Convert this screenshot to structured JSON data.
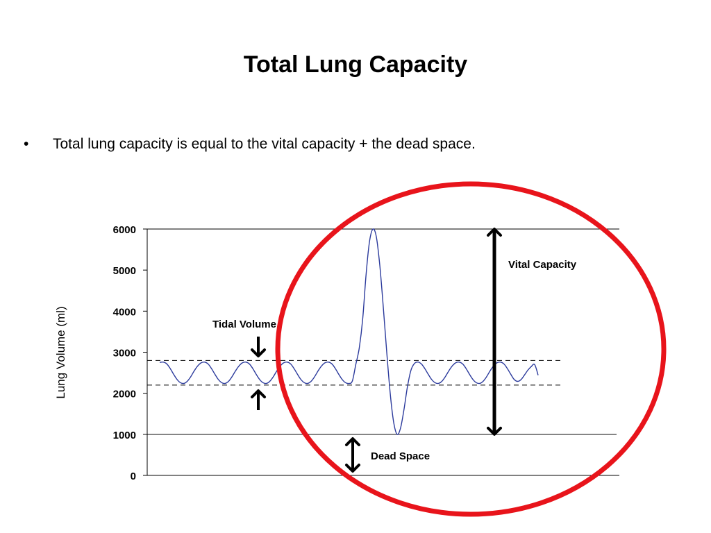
{
  "slide": {
    "title": "Total Lung Capacity",
    "bullet_marker": "•",
    "bullet_text": "Total lung capacity is equal to the vital capacity + the dead space."
  },
  "chart_data": {
    "type": "line",
    "title": "",
    "xlabel": "",
    "ylabel": "Lung Volume (ml)",
    "ylim": [
      0,
      6000
    ],
    "yticks": [
      0,
      1000,
      2000,
      3000,
      4000,
      5000,
      6000
    ],
    "grid": false,
    "series": [
      {
        "color": "#2b3a9c",
        "x": [
          0,
          1,
          2,
          3,
          4,
          5,
          6,
          7,
          8,
          9,
          10,
          11,
          12,
          13,
          14,
          15,
          16,
          17,
          18,
          19,
          20,
          21,
          22,
          23,
          24,
          25,
          26,
          27,
          28,
          29,
          30,
          31,
          32,
          33,
          34,
          35,
          36,
          37,
          38,
          39,
          40,
          41,
          42,
          43,
          44,
          45,
          46,
          47,
          48,
          49,
          50,
          51,
          52,
          53,
          54,
          55,
          56,
          57,
          58,
          59,
          60,
          61,
          62,
          63,
          64,
          65,
          66,
          67,
          68,
          69,
          70,
          71,
          72,
          73,
          74,
          75,
          76,
          77,
          78,
          79,
          80,
          81,
          82,
          83,
          84,
          85,
          86,
          87,
          88,
          89,
          90,
          91,
          92,
          93,
          94,
          95,
          96,
          97,
          98,
          99,
          100,
          101,
          102,
          103,
          104,
          105,
          106,
          107,
          108,
          109,
          110
        ],
        "y": [
          2750,
          2760,
          2720,
          2610,
          2470,
          2340,
          2260,
          2240,
          2290,
          2400,
          2540,
          2660,
          2740,
          2760,
          2720,
          2610,
          2470,
          2340,
          2260,
          2240,
          2290,
          2400,
          2540,
          2660,
          2740,
          2760,
          2720,
          2610,
          2470,
          2340,
          2260,
          2240,
          2290,
          2400,
          2540,
          2660,
          2740,
          2760,
          2720,
          2610,
          2470,
          2340,
          2260,
          2240,
          2290,
          2400,
          2540,
          2660,
          2740,
          2760,
          2720,
          2610,
          2470,
          2340,
          2260,
          2240,
          2300,
          2700,
          3100,
          3800,
          4900,
          5700,
          6000,
          5800,
          5100,
          4100,
          3000,
          2000,
          1300,
          1000,
          1150,
          1600,
          2150,
          2550,
          2720,
          2760,
          2720,
          2610,
          2470,
          2340,
          2260,
          2240,
          2290,
          2400,
          2540,
          2660,
          2740,
          2760,
          2720,
          2610,
          2470,
          2340,
          2260,
          2240,
          2290,
          2400,
          2540,
          2660,
          2740,
          2760,
          2720,
          2610,
          2470,
          2340,
          2290,
          2330,
          2440,
          2560,
          2650,
          2700,
          2440
        ]
      }
    ],
    "reference_lines": [
      {
        "y": 2800,
        "style": "dashed"
      },
      {
        "y": 2200,
        "style": "dashed"
      },
      {
        "y": 1000,
        "style": "solid"
      },
      {
        "y": 6000,
        "style": "solid"
      }
    ],
    "annotations": [
      {
        "text": "Tidal Volume",
        "arrows": "pointing inward between 2800 and 2200"
      },
      {
        "text": "Vital Capacity",
        "arrow": "double-headed from 1000 to 6000"
      },
      {
        "text": "Dead Space",
        "arrow": "double-headed from 0 to 1000"
      }
    ],
    "highlight_color": "#e8141b"
  }
}
